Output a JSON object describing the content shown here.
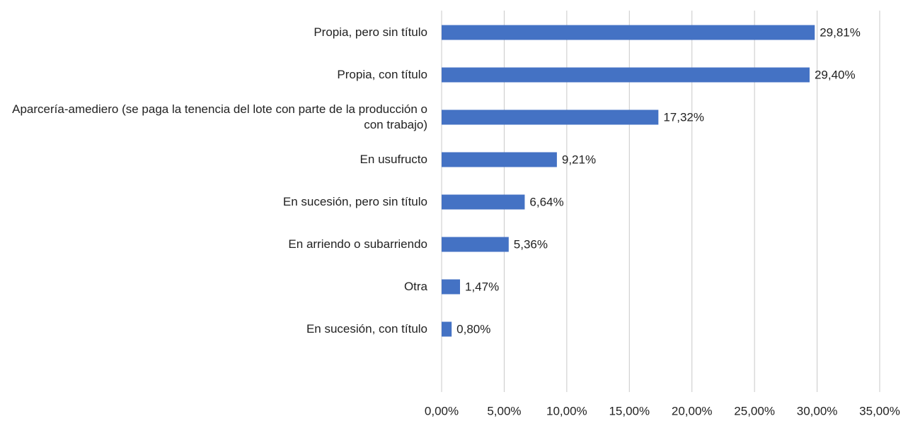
{
  "chart_data": {
    "type": "bar",
    "orientation": "horizontal",
    "categories": [
      "Propia, pero sin título",
      "Propia, con título",
      "Aparcería-amediero (se paga la tenencia del lote con parte de la producción o con trabajo)",
      "En usufructo",
      "En sucesión, pero sin título",
      "En arriendo o subarriendo",
      "Otra",
      "En sucesión, con título"
    ],
    "values": [
      29.81,
      29.4,
      17.32,
      9.21,
      6.64,
      5.36,
      1.47,
      0.8
    ],
    "value_labels": [
      "29,81%",
      "29,40%",
      "17,32%",
      "9,21%",
      "6,64%",
      "5,36%",
      "1,47%",
      "0,80%"
    ],
    "color": "#4472c4",
    "xlim": [
      0,
      35
    ],
    "xticks": [
      {
        "value": 0,
        "label": "0,00%"
      },
      {
        "value": 5,
        "label": "5,00%"
      },
      {
        "value": 10,
        "label": "10,00%"
      },
      {
        "value": 15,
        "label": "15,00%"
      },
      {
        "value": 20,
        "label": "20,00%"
      },
      {
        "value": 25,
        "label": "25,00%"
      },
      {
        "value": 30,
        "label": "30,00%"
      },
      {
        "value": 35,
        "label": "35,00%"
      }
    ],
    "grid": true
  }
}
